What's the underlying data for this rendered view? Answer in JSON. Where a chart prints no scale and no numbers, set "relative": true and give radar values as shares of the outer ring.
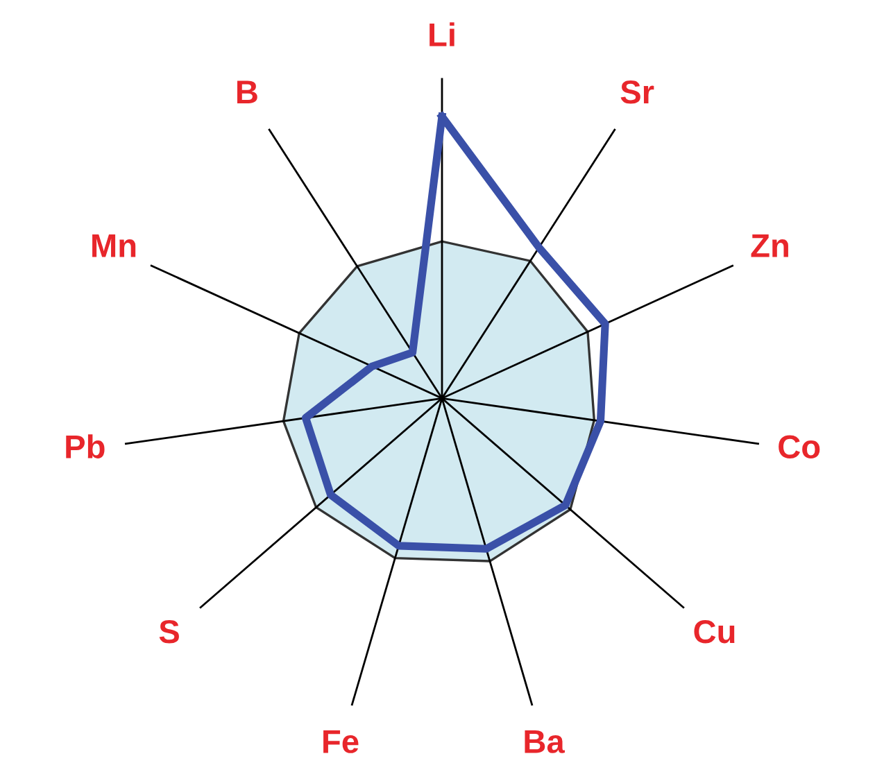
{
  "chart_data": {
    "type": "radar",
    "relative": true,
    "categories": [
      "Li",
      "Sr",
      "Zn",
      "Co",
      "Cu",
      "Ba",
      "Fe",
      "S",
      "Pb",
      "Mn",
      "B"
    ],
    "series": [
      {
        "color": "#d2eaf1",
        "values": [
          0.49,
          0.51,
          0.5,
          0.48,
          0.53,
          0.53,
          0.52,
          0.52,
          0.5,
          0.49,
          0.49
        ]
      },
      {
        "color": "#3a50a8",
        "values": [
          0.88,
          0.56,
          0.56,
          0.5,
          0.51,
          0.49,
          0.48,
          0.46,
          0.43,
          0.24,
          0.17
        ]
      }
    ],
    "grid": "x",
    "legend": false
  }
}
